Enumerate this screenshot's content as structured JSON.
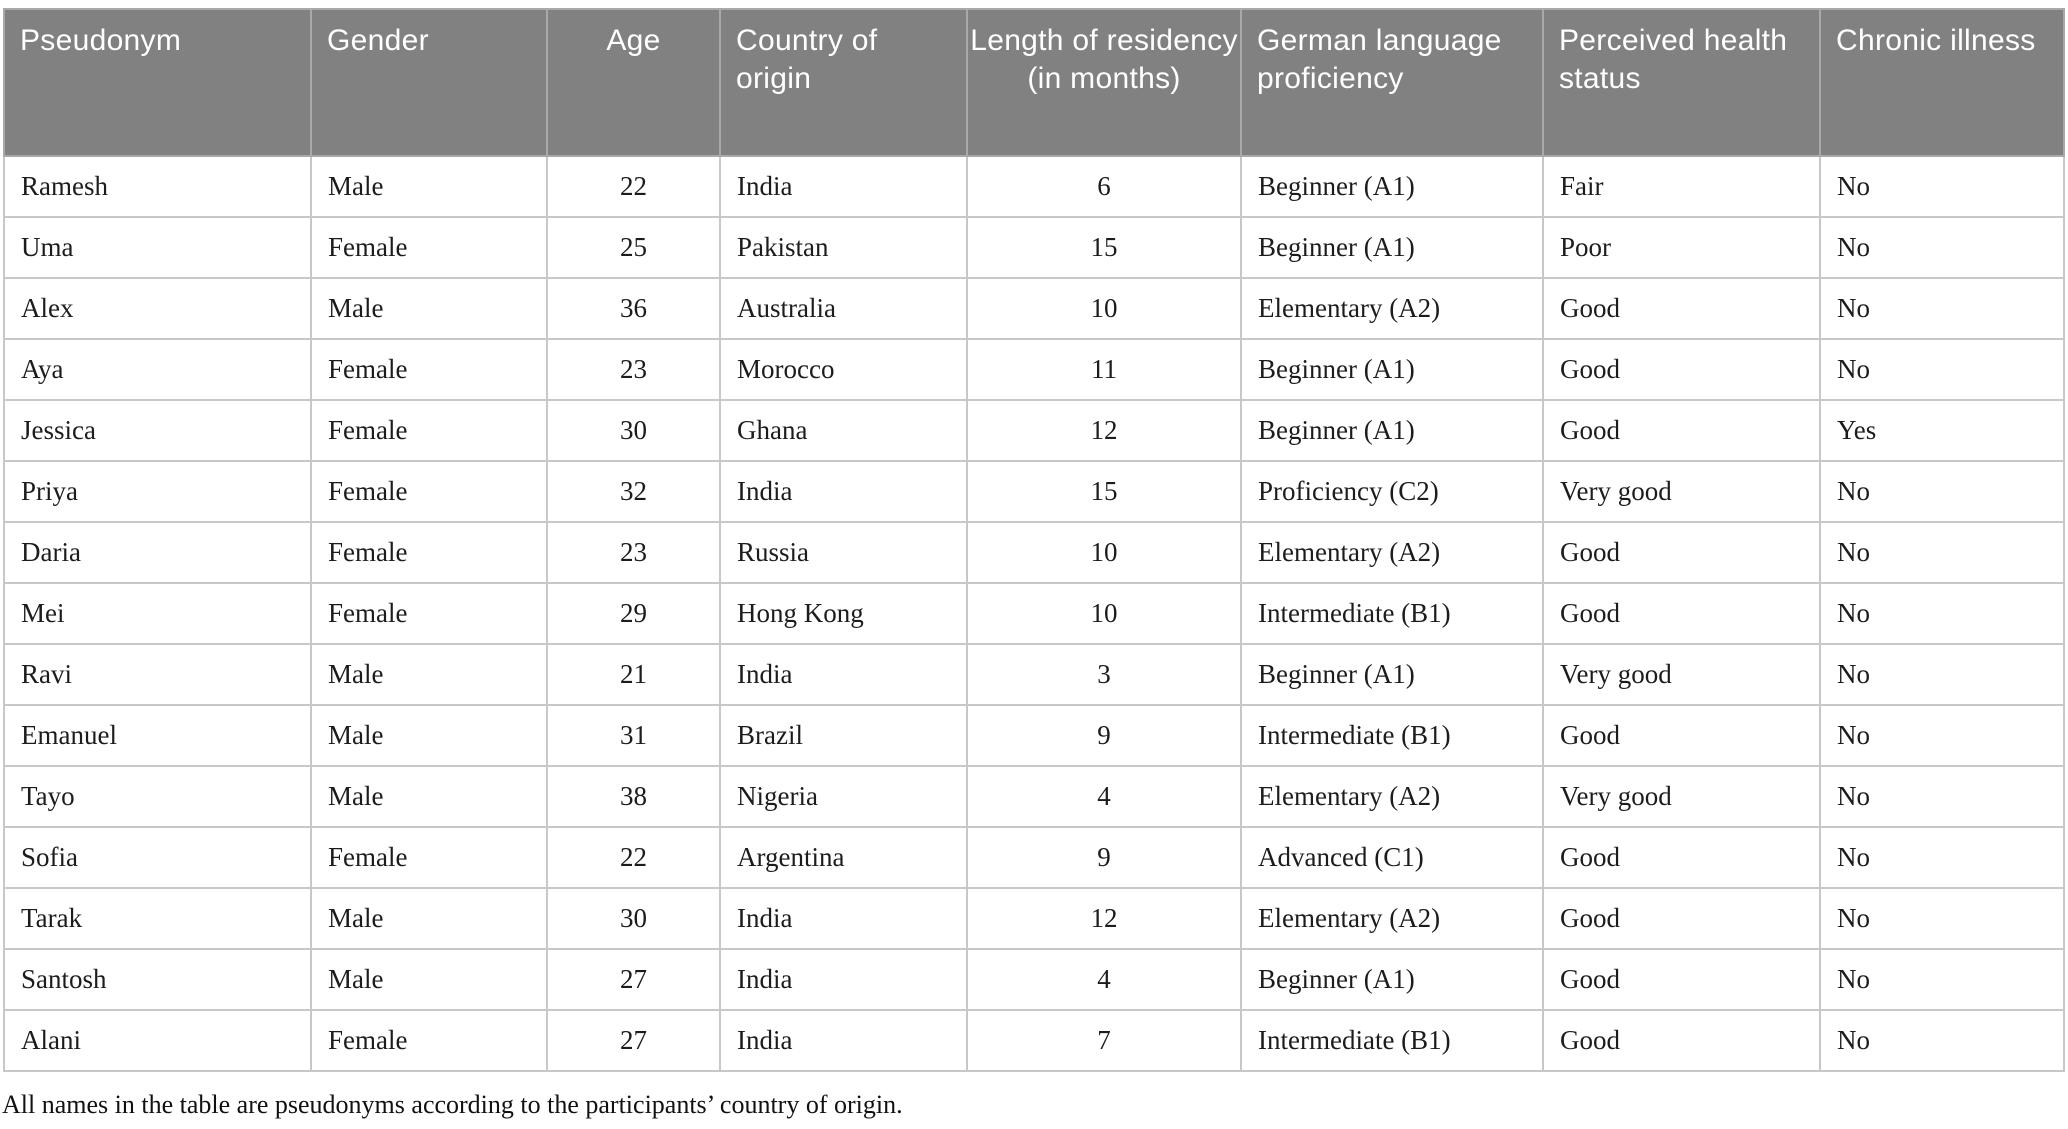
{
  "table": {
    "columns": [
      {
        "label": "Pseudonym",
        "align": "left"
      },
      {
        "label": "Gender",
        "align": "left"
      },
      {
        "label": "Age",
        "align": "center"
      },
      {
        "label": "Country of origin",
        "align": "left"
      },
      {
        "label": "Length of residency (in months)",
        "align": "center"
      },
      {
        "label": "German language proficiency",
        "align": "left"
      },
      {
        "label": "Perceived health status",
        "align": "left"
      },
      {
        "label": "Chronic illness",
        "align": "left"
      }
    ],
    "rows": [
      [
        "Ramesh",
        "Male",
        "22",
        "India",
        "6",
        "Beginner (A1)",
        "Fair",
        "No"
      ],
      [
        "Uma",
        "Female",
        "25",
        "Pakistan",
        "15",
        "Beginner (A1)",
        "Poor",
        "No"
      ],
      [
        "Alex",
        "Male",
        "36",
        "Australia",
        "10",
        "Elementary (A2)",
        "Good",
        "No"
      ],
      [
        "Aya",
        "Female",
        "23",
        "Morocco",
        "11",
        "Beginner (A1)",
        "Good",
        "No"
      ],
      [
        "Jessica",
        "Female",
        "30",
        "Ghana",
        "12",
        "Beginner (A1)",
        "Good",
        "Yes"
      ],
      [
        "Priya",
        "Female",
        "32",
        "India",
        "15",
        "Proficiency (C2)",
        "Very good",
        "No"
      ],
      [
        "Daria",
        "Female",
        "23",
        "Russia",
        "10",
        "Elementary (A2)",
        "Good",
        "No"
      ],
      [
        "Mei",
        "Female",
        "29",
        "Hong Kong",
        "10",
        "Intermediate (B1)",
        "Good",
        "No"
      ],
      [
        "Ravi",
        "Male",
        "21",
        "India",
        "3",
        "Beginner (A1)",
        "Very good",
        "No"
      ],
      [
        "Emanuel",
        "Male",
        "31",
        "Brazil",
        "9",
        "Intermediate (B1)",
        "Good",
        "No"
      ],
      [
        "Tayo",
        "Male",
        "38",
        "Nigeria",
        "4",
        "Elementary (A2)",
        "Very good",
        "No"
      ],
      [
        "Sofia",
        "Female",
        "22",
        "Argentina",
        "9",
        "Advanced (C1)",
        "Good",
        "No"
      ],
      [
        "Tarak",
        "Male",
        "30",
        "India",
        "12",
        "Elementary (A2)",
        "Good",
        "No"
      ],
      [
        "Santosh",
        "Male",
        "27",
        "India",
        "4",
        "Beginner (A1)",
        "Good",
        "No"
      ],
      [
        "Alani",
        "Female",
        "27",
        "India",
        "7",
        "Intermediate (B1)",
        "Good",
        "No"
      ]
    ],
    "footnote": "All names in the table are pseudonyms according to the participants’ country of origin."
  },
  "colors": {
    "header_bg": "#818181",
    "header_text": "#ffffff",
    "header_border": "#a9a9a9",
    "border": "#c8c8c8",
    "body_text": "#1c1c1c",
    "page_bg": "#ffffff"
  }
}
